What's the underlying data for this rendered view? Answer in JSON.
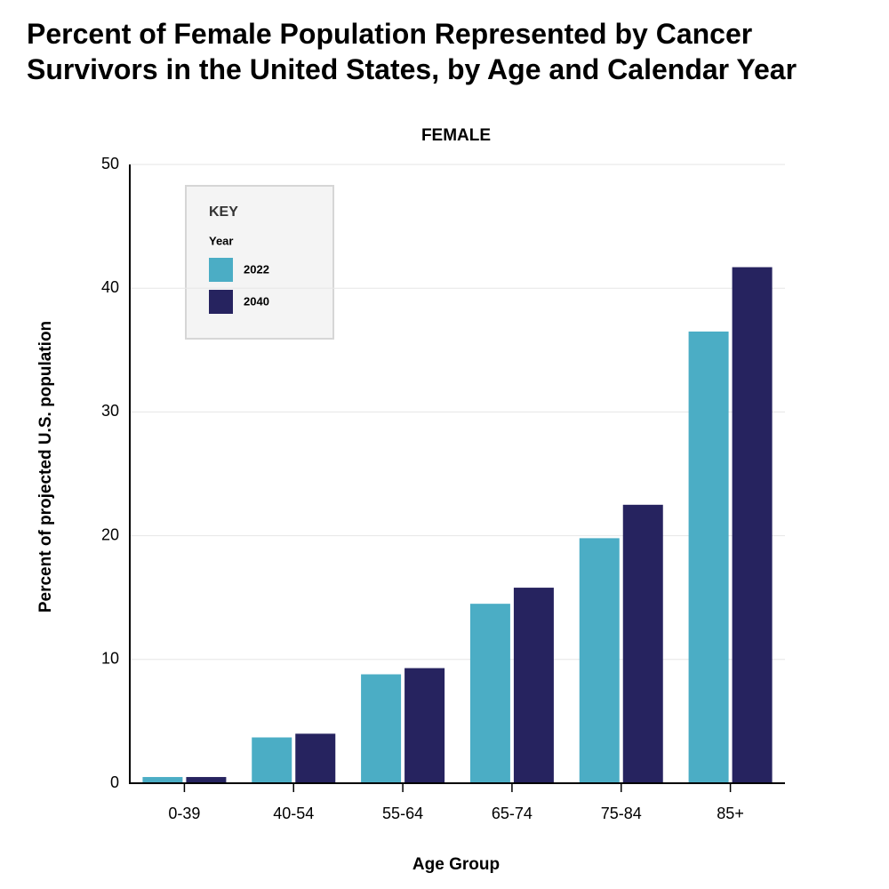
{
  "chart_data": {
    "type": "bar",
    "title": "Percent of Female Population Represented by Cancer Survivors in the United States, by Age and Calendar Year",
    "subtitle": "FEMALE",
    "x_label": "Age Group",
    "y_label": "Percent of projected U.S. population",
    "legend_title": "KEY",
    "legend_subtitle": "Year",
    "categories": [
      "0-39",
      "40-54",
      "55-64",
      "65-74",
      "75-84",
      "85+"
    ],
    "series": [
      {
        "name": "2022",
        "color": "#4badc5",
        "values": [
          0.5,
          3.7,
          8.8,
          14.5,
          19.8,
          36.5
        ]
      },
      {
        "name": "2040",
        "color": "#26235f",
        "values": [
          0.5,
          4.0,
          9.3,
          15.8,
          22.5,
          41.7
        ]
      }
    ],
    "ylim": [
      0,
      50
    ],
    "yticks": [
      0,
      10,
      20,
      30,
      40,
      50
    ],
    "grid": true
  }
}
